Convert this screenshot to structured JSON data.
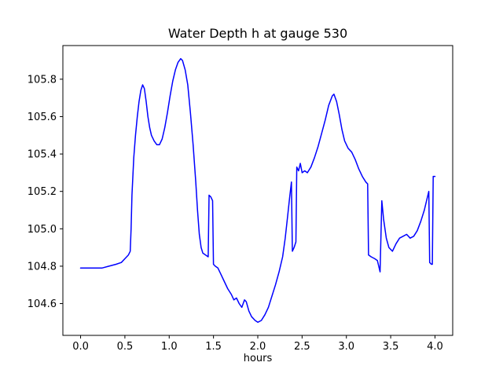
{
  "figure": {
    "background": "#ffffff",
    "axes_color": "#000000"
  },
  "chart_data": {
    "type": "line",
    "title": "Water Depth h at gauge 530",
    "xlabel": "hours",
    "ylabel": "",
    "line_color": "#0000ff",
    "line_width": 1.5,
    "grid": false,
    "legend": "none",
    "xlim": [
      -0.2,
      4.2
    ],
    "ylim": [
      104.43,
      105.98
    ],
    "xticks": [
      0.0,
      0.5,
      1.0,
      1.5,
      2.0,
      2.5,
      3.0,
      3.5,
      4.0
    ],
    "yticks": [
      104.6,
      104.8,
      105.0,
      105.2,
      105.4,
      105.6,
      105.8
    ],
    "points": [
      [
        0.0,
        104.79
      ],
      [
        0.08,
        104.79
      ],
      [
        0.16,
        104.79
      ],
      [
        0.24,
        104.79
      ],
      [
        0.32,
        104.8
      ],
      [
        0.4,
        104.81
      ],
      [
        0.46,
        104.82
      ],
      [
        0.5,
        104.84
      ],
      [
        0.54,
        104.86
      ],
      [
        0.56,
        104.88
      ],
      [
        0.57,
        105.0
      ],
      [
        0.58,
        105.18
      ],
      [
        0.6,
        105.38
      ],
      [
        0.62,
        105.5
      ],
      [
        0.64,
        105.6
      ],
      [
        0.66,
        105.68
      ],
      [
        0.68,
        105.74
      ],
      [
        0.7,
        105.77
      ],
      [
        0.72,
        105.75
      ],
      [
        0.74,
        105.68
      ],
      [
        0.76,
        105.6
      ],
      [
        0.78,
        105.54
      ],
      [
        0.8,
        105.5
      ],
      [
        0.83,
        105.47
      ],
      [
        0.86,
        105.45
      ],
      [
        0.89,
        105.45
      ],
      [
        0.92,
        105.48
      ],
      [
        0.95,
        105.54
      ],
      [
        0.98,
        105.62
      ],
      [
        1.01,
        105.71
      ],
      [
        1.04,
        105.79
      ],
      [
        1.07,
        105.85
      ],
      [
        1.1,
        105.89
      ],
      [
        1.13,
        105.91
      ],
      [
        1.15,
        105.9
      ],
      [
        1.18,
        105.85
      ],
      [
        1.21,
        105.77
      ],
      [
        1.24,
        105.62
      ],
      [
        1.27,
        105.45
      ],
      [
        1.3,
        105.25
      ],
      [
        1.32,
        105.1
      ],
      [
        1.34,
        104.97
      ],
      [
        1.36,
        104.9
      ],
      [
        1.38,
        104.87
      ],
      [
        1.41,
        104.86
      ],
      [
        1.44,
        104.85
      ],
      [
        1.45,
        105.18
      ],
      [
        1.47,
        105.17
      ],
      [
        1.49,
        105.15
      ],
      [
        1.5,
        104.81
      ],
      [
        1.52,
        104.8
      ],
      [
        1.55,
        104.79
      ],
      [
        1.58,
        104.76
      ],
      [
        1.62,
        104.72
      ],
      [
        1.66,
        104.68
      ],
      [
        1.7,
        104.65
      ],
      [
        1.73,
        104.62
      ],
      [
        1.76,
        104.63
      ],
      [
        1.79,
        104.6
      ],
      [
        1.82,
        104.58
      ],
      [
        1.85,
        104.62
      ],
      [
        1.87,
        104.61
      ],
      [
        1.9,
        104.56
      ],
      [
        1.93,
        104.53
      ],
      [
        1.97,
        104.51
      ],
      [
        2.0,
        104.5
      ],
      [
        2.04,
        104.51
      ],
      [
        2.08,
        104.54
      ],
      [
        2.12,
        104.58
      ],
      [
        2.16,
        104.64
      ],
      [
        2.2,
        104.7
      ],
      [
        2.24,
        104.77
      ],
      [
        2.28,
        104.85
      ],
      [
        2.31,
        104.95
      ],
      [
        2.34,
        105.08
      ],
      [
        2.36,
        105.17
      ],
      [
        2.38,
        105.25
      ],
      [
        2.39,
        104.88
      ],
      [
        2.41,
        104.9
      ],
      [
        2.43,
        104.93
      ],
      [
        2.44,
        105.33
      ],
      [
        2.46,
        105.31
      ],
      [
        2.48,
        105.35
      ],
      [
        2.5,
        105.3
      ],
      [
        2.53,
        105.31
      ],
      [
        2.56,
        105.3
      ],
      [
        2.6,
        105.33
      ],
      [
        2.64,
        105.38
      ],
      [
        2.68,
        105.44
      ],
      [
        2.72,
        105.51
      ],
      [
        2.76,
        105.58
      ],
      [
        2.8,
        105.66
      ],
      [
        2.84,
        105.71
      ],
      [
        2.86,
        105.72
      ],
      [
        2.89,
        105.68
      ],
      [
        2.92,
        105.61
      ],
      [
        2.95,
        105.53
      ],
      [
        2.98,
        105.47
      ],
      [
        3.02,
        105.43
      ],
      [
        3.06,
        105.41
      ],
      [
        3.1,
        105.37
      ],
      [
        3.14,
        105.32
      ],
      [
        3.18,
        105.28
      ],
      [
        3.22,
        105.25
      ],
      [
        3.24,
        105.24
      ],
      [
        3.25,
        104.86
      ],
      [
        3.28,
        104.85
      ],
      [
        3.32,
        104.84
      ],
      [
        3.35,
        104.83
      ],
      [
        3.38,
        104.77
      ],
      [
        3.4,
        105.15
      ],
      [
        3.42,
        105.05
      ],
      [
        3.45,
        104.95
      ],
      [
        3.48,
        104.9
      ],
      [
        3.52,
        104.88
      ],
      [
        3.56,
        104.92
      ],
      [
        3.6,
        104.95
      ],
      [
        3.64,
        104.96
      ],
      [
        3.68,
        104.97
      ],
      [
        3.72,
        104.95
      ],
      [
        3.76,
        104.96
      ],
      [
        3.8,
        104.99
      ],
      [
        3.84,
        105.04
      ],
      [
        3.88,
        105.1
      ],
      [
        3.91,
        105.16
      ],
      [
        3.93,
        105.2
      ],
      [
        3.94,
        104.82
      ],
      [
        3.96,
        104.81
      ],
      [
        3.97,
        104.81
      ],
      [
        3.98,
        105.28
      ],
      [
        4.0,
        105.28
      ]
    ]
  }
}
